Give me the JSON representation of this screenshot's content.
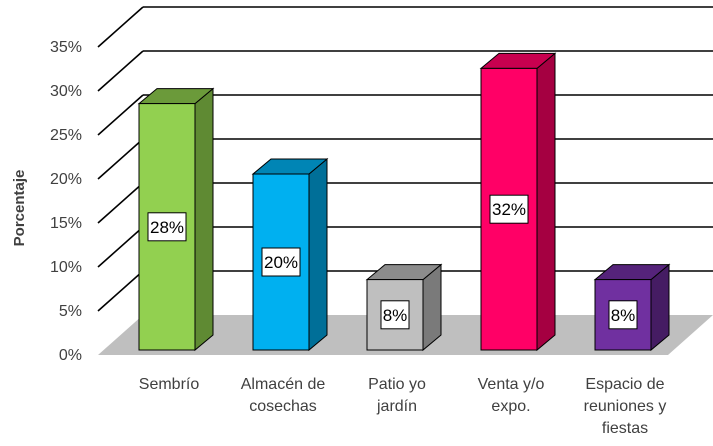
{
  "chart_data": {
    "type": "bar",
    "ylabel": "Porcentaje",
    "ylim": [
      0,
      35
    ],
    "yticks": [
      "0%",
      "5%",
      "10%",
      "15%",
      "20%",
      "25%",
      "30%",
      "35%"
    ],
    "grid": true,
    "three_d": true,
    "categories": [
      [
        "Sembrío"
      ],
      [
        "Almacén de",
        "cosechas"
      ],
      [
        "Patio yo",
        "jardín"
      ],
      [
        "Venta y/o",
        "expo."
      ],
      [
        "Espacio de",
        "reuniones y",
        "fiestas"
      ]
    ],
    "values": [
      28,
      20,
      8,
      32,
      8
    ],
    "data_labels": [
      "28%",
      "20%",
      "8%",
      "32%",
      "8%"
    ],
    "colors": [
      {
        "front": "#92d050",
        "top": "#6b9a3a",
        "side": "#5f8a33"
      },
      {
        "front": "#00b0f0",
        "top": "#0085b5",
        "side": "#006f98"
      },
      {
        "front": "#bfbfbf",
        "top": "#8c8c8c",
        "side": "#7a7a7a"
      },
      {
        "front": "#ff0066",
        "top": "#c8004f",
        "side": "#a50041"
      },
      {
        "front": "#7030a0",
        "top": "#55237a",
        "side": "#451c63"
      }
    ],
    "floor_color": "#bfbfbf"
  }
}
